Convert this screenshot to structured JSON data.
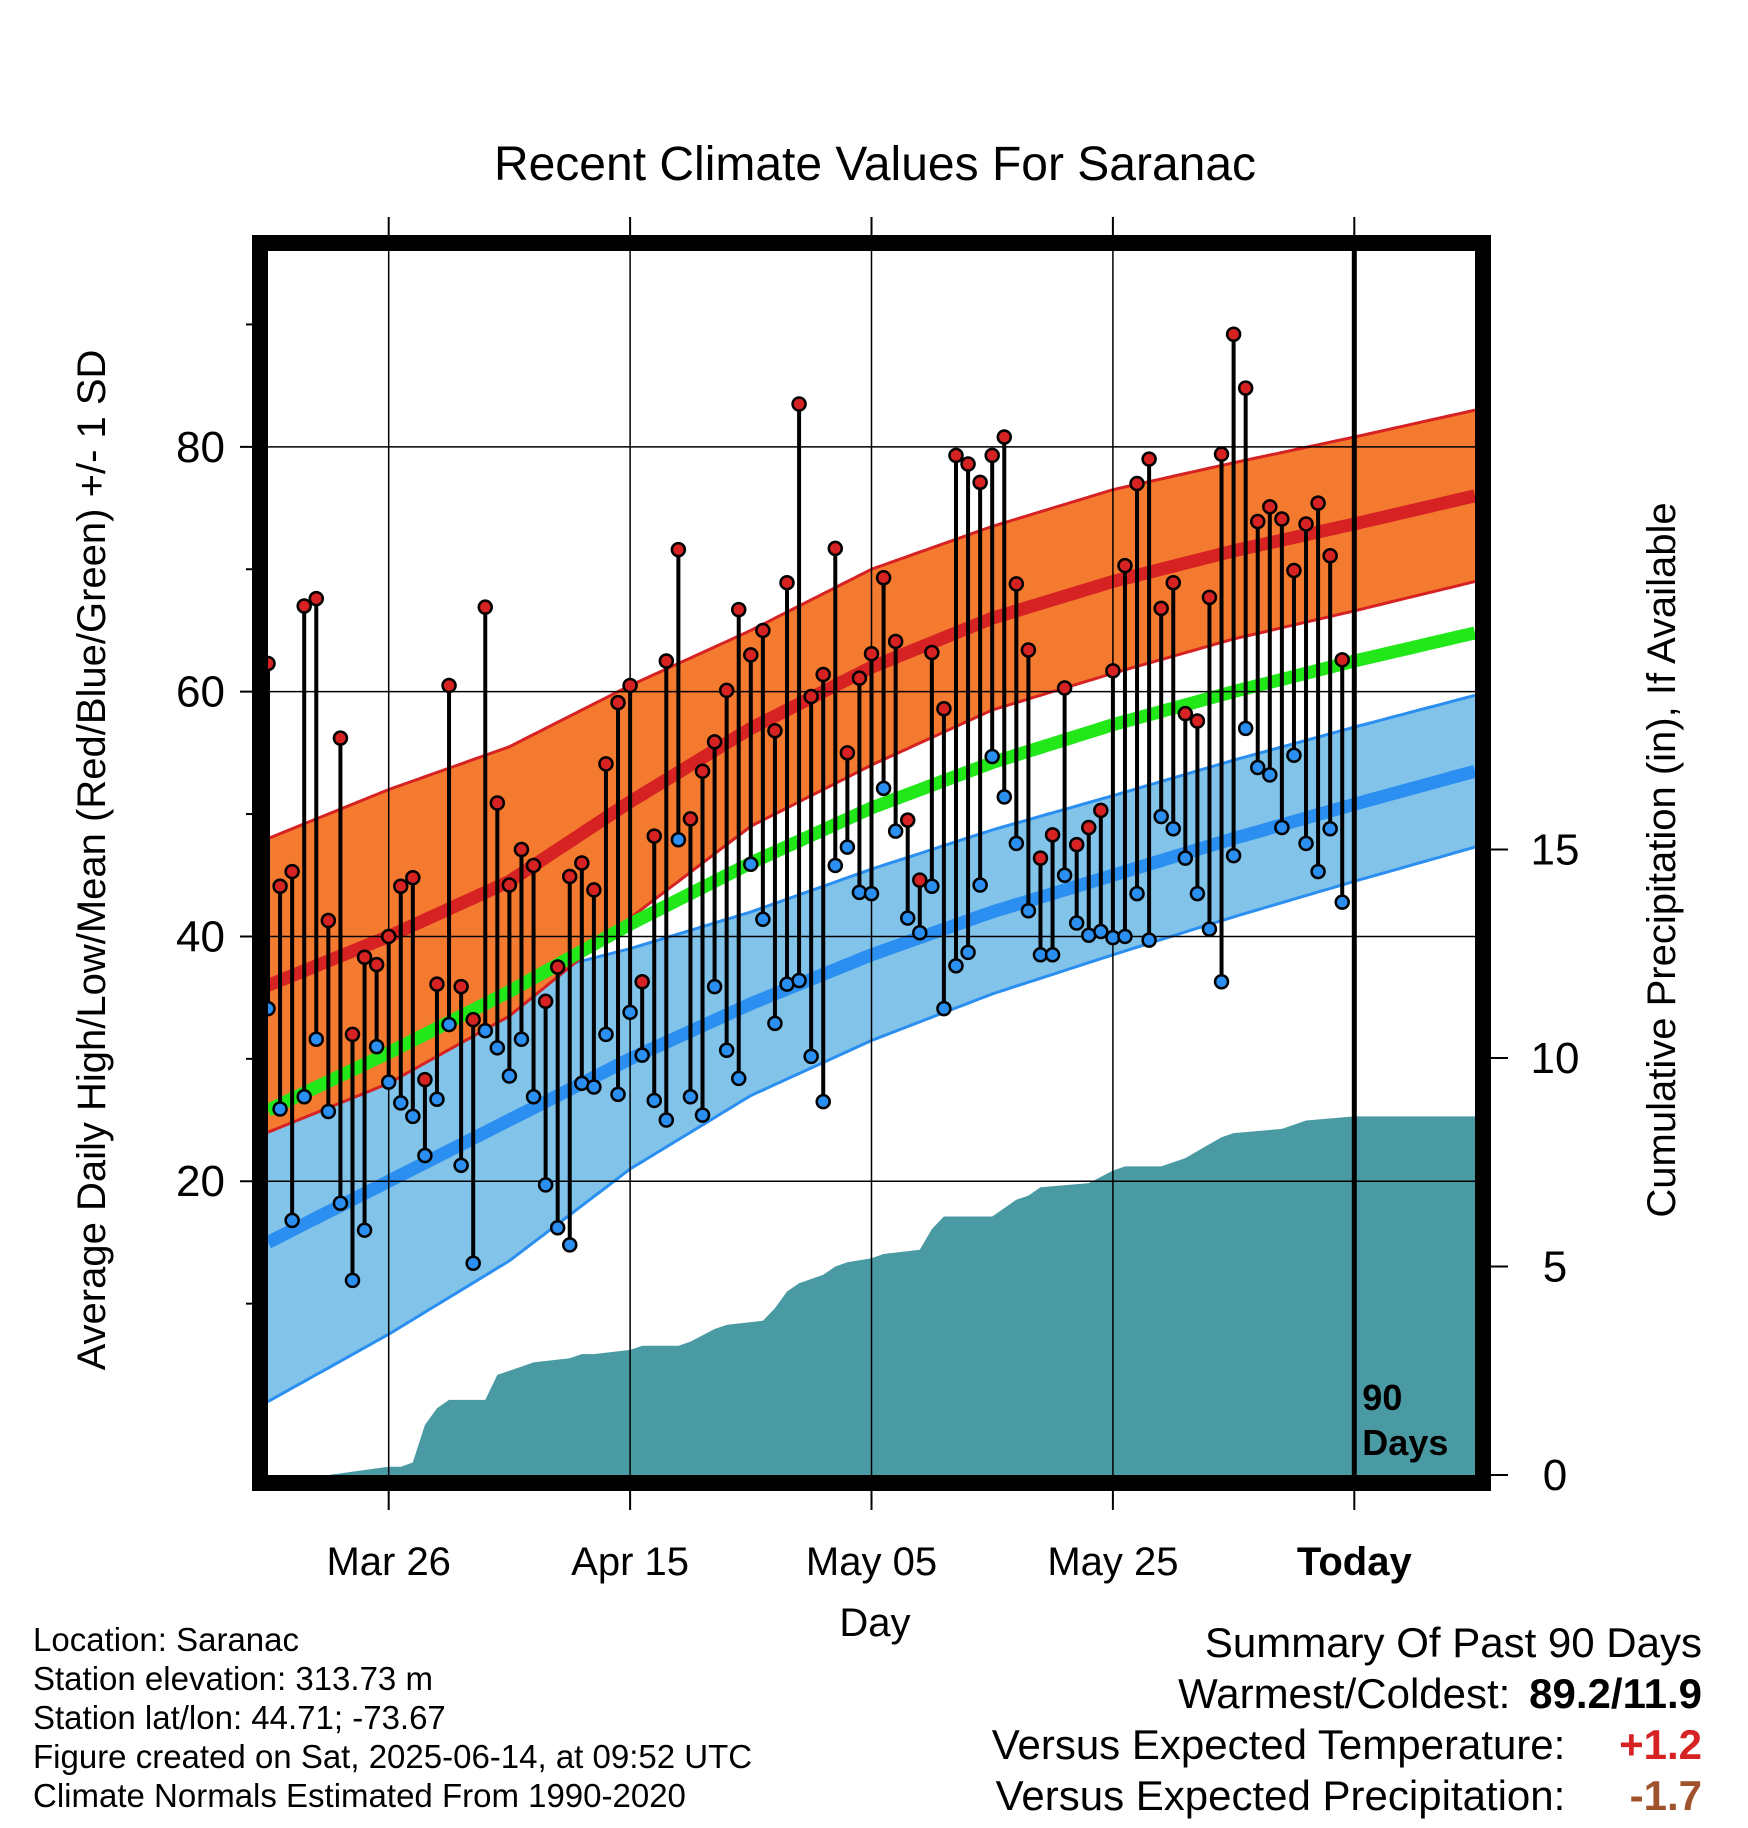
{
  "chart_data": {
    "type": "line",
    "title": "Recent Climate Values For Saranac",
    "xlabel": "Day",
    "ylabel": "Average Daily High/Low/Mean (Red/Blue/Green) +/- 1 SD",
    "y2label": "Cumulative Precipitation (in), If Available",
    "ylim": [
      -4,
      96
    ],
    "y2lim": [
      0,
      20
    ],
    "x_ticks": [
      "Mar 26",
      "Apr 15",
      "May 05",
      "May 25",
      "Today"
    ],
    "y_ticks": [
      20,
      40,
      60,
      80
    ],
    "y2_ticks": [
      0,
      5,
      10,
      15
    ],
    "grid": true,
    "today_marker_label": [
      "90",
      "Days"
    ],
    "colors": {
      "high": "#d62222",
      "high_band": "#f47a30",
      "low": "#2a8ff0",
      "low_band": "#82c3ea",
      "mean": "#22e81a",
      "precip": "#4a9aa4",
      "frame": "#000000"
    },
    "normals": {
      "days": [
        0,
        10,
        20,
        30,
        40,
        50,
        60,
        70,
        80,
        90,
        100
      ],
      "high_mean": [
        36,
        40,
        44.5,
        51,
        57,
        62,
        66,
        69,
        71.5,
        73.7,
        76
      ],
      "high_sd": [
        12,
        12,
        11,
        9.5,
        8,
        8,
        7.5,
        7.5,
        7.2,
        7.1,
        7
      ],
      "low_mean": [
        15,
        20,
        25,
        30,
        34.5,
        38.5,
        42,
        45,
        48,
        50.8,
        53.5
      ],
      "low_sd": [
        13,
        12.5,
        11.5,
        9,
        7.5,
        7,
        6.7,
        6.5,
        6.4,
        6.3,
        6.2
      ],
      "mean": [
        25.8,
        30.5,
        35.5,
        41,
        46,
        50.5,
        54.2,
        57.3,
        60,
        62.5,
        64.8
      ]
    },
    "observed": {
      "start_day": 0,
      "high": [
        62.3,
        44.1,
        45.3,
        67.0,
        67.6,
        41.3,
        56.2,
        32.0,
        38.3,
        37.7,
        40.0,
        44.1,
        44.8,
        28.3,
        36.1,
        60.5,
        35.9,
        33.2,
        66.9,
        50.9,
        44.2,
        47.1,
        45.8,
        34.7,
        37.5,
        44.9,
        46.0,
        43.8,
        54.1,
        59.1,
        60.5,
        36.3,
        48.2,
        62.5,
        71.6,
        49.6,
        53.5,
        55.9,
        60.1,
        66.7,
        63.0,
        65.0,
        56.8,
        68.9,
        83.5,
        59.6,
        61.4,
        71.7,
        55.0,
        61.1,
        63.1,
        69.3,
        64.1,
        49.5,
        44.6,
        63.2,
        58.6,
        79.3,
        78.6,
        77.1,
        79.3,
        80.8,
        68.8,
        63.4,
        46.4,
        48.3,
        60.3,
        47.5,
        48.9,
        50.3,
        61.7,
        70.3,
        77.0,
        79.0,
        66.8,
        68.9,
        58.2,
        57.6,
        67.7,
        79.4,
        89.2,
        84.8,
        73.9,
        75.1,
        74.1,
        69.9,
        73.7,
        75.4,
        71.1,
        62.6
      ],
      "low": [
        34.1,
        25.9,
        16.8,
        26.9,
        31.6,
        25.7,
        18.2,
        11.9,
        16.0,
        31.0,
        28.1,
        26.4,
        25.3,
        22.1,
        26.7,
        32.8,
        21.3,
        13.3,
        32.3,
        30.9,
        28.6,
        31.6,
        26.9,
        19.7,
        16.2,
        14.8,
        28.0,
        27.7,
        32.0,
        27.1,
        33.8,
        30.3,
        26.6,
        25.0,
        47.9,
        26.9,
        25.4,
        35.9,
        30.7,
        28.4,
        45.9,
        41.4,
        32.9,
        36.1,
        36.4,
        30.2,
        26.5,
        45.8,
        47.3,
        43.6,
        43.5,
        52.1,
        48.6,
        41.5,
        40.3,
        44.1,
        34.1,
        37.6,
        38.7,
        44.2,
        54.7,
        51.4,
        47.6,
        42.1,
        38.5,
        38.5,
        45.0,
        41.1,
        40.1,
        40.4,
        39.9,
        40.0,
        43.5,
        39.7,
        49.8,
        48.8,
        46.4,
        43.5,
        40.6,
        36.3,
        46.6,
        57.0,
        53.8,
        53.2,
        48.9,
        54.8,
        47.6,
        45.3,
        48.8,
        42.8
      ]
    },
    "precip_cumulative": {
      "days": [
        0,
        5,
        10,
        11,
        12,
        13,
        14,
        15,
        16,
        17,
        18,
        19,
        20,
        21,
        22,
        25,
        26,
        27,
        30,
        31,
        34,
        35,
        37,
        38,
        41,
        42,
        43,
        44,
        46,
        47,
        48,
        50,
        51,
        54,
        55,
        56,
        60,
        61,
        62,
        63,
        64,
        68,
        70,
        71,
        74,
        75,
        76,
        79,
        80,
        84,
        85,
        86,
        90,
        100
      ],
      "values": [
        0,
        0,
        0.2,
        0.2,
        0.3,
        1.2,
        1.6,
        1.8,
        1.8,
        1.8,
        1.8,
        2.4,
        2.5,
        2.6,
        2.7,
        2.8,
        2.9,
        2.9,
        3.0,
        3.1,
        3.1,
        3.2,
        3.5,
        3.6,
        3.7,
        4.0,
        4.4,
        4.6,
        4.8,
        5.0,
        5.1,
        5.2,
        5.3,
        5.4,
        5.9,
        6.2,
        6.2,
        6.4,
        6.6,
        6.7,
        6.9,
        7.0,
        7.3,
        7.4,
        7.4,
        7.5,
        7.6,
        8.1,
        8.2,
        8.3,
        8.4,
        8.5,
        8.6,
        8.6
      ]
    }
  },
  "station_info": {
    "location": "Location: Saranac",
    "elevation": "Station elevation: 313.73 m",
    "latlon": "Station lat/lon: 44.71; -73.67",
    "created": "Figure created on Sat, 2025-06-14, at 09:52 UTC",
    "normals": "Climate Normals Estimated From 1990-2020"
  },
  "summary": {
    "heading": "Summary Of Past 90 Days",
    "warmest_label": "Warmest/Coldest:",
    "warmest_value": "89.2/11.9",
    "temp_label": "Versus Expected Temperature:",
    "temp_value": "+1.2",
    "temp_color": "#d62222",
    "precip_label": "Versus Expected Precipitation:",
    "precip_value": "-1.7",
    "precip_color": "#a0522d"
  }
}
